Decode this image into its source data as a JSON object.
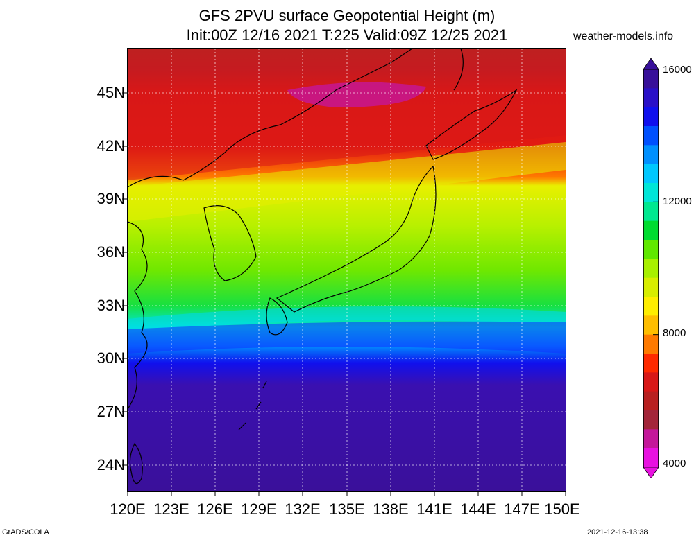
{
  "title_line1": "GFS 2PVU surface Geopotential Height (m)",
  "title_line2": "Init:00Z 12/16 2021 T:225 Valid:09Z 12/25 2021",
  "site": "weather-models.info",
  "credit": "GrADS/COLA",
  "timestamp": "2021-12-16-13:38",
  "map": {
    "lon_range": [
      120,
      150
    ],
    "lat_range": [
      22.5,
      47.5
    ],
    "lat_labels": [
      "45N",
      "42N",
      "39N",
      "36N",
      "33N",
      "30N",
      "27N",
      "24N"
    ],
    "lon_labels": [
      "120E",
      "123E",
      "126E",
      "129E",
      "132E",
      "135E",
      "138E",
      "141E",
      "144E",
      "147E",
      "150E"
    ]
  },
  "colorbar": {
    "labels": [
      "16000",
      "12000",
      "8000",
      "4000"
    ],
    "colors": [
      "#e811e0",
      "#c4179a",
      "#a3253a",
      "#b82020",
      "#d81818",
      "#ff2a00",
      "#ff7a00",
      "#ffbe00",
      "#ffee00",
      "#d8ee00",
      "#a8f000",
      "#60e800",
      "#00dc30",
      "#00e890",
      "#00e6d8",
      "#00c8ff",
      "#0090ff",
      "#0050ff",
      "#1010ee",
      "#2a10c8",
      "#38109a"
    ]
  }
}
